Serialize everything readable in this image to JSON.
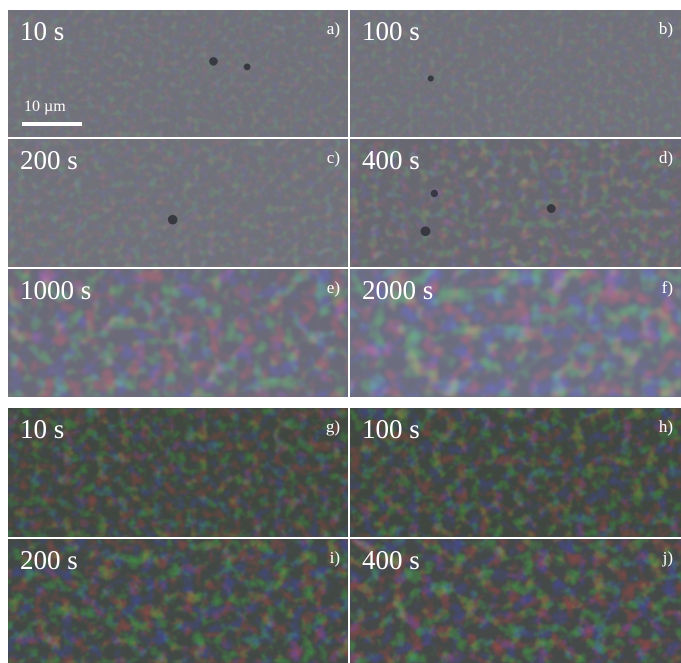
{
  "colors": {
    "top_base": "#6f7179",
    "bottom_base": "#3f4640",
    "background": "#ffffff"
  },
  "scale_bar": {
    "label": "10 µm"
  },
  "panels": [
    {
      "tag": "a)",
      "time": "10 s"
    },
    {
      "tag": "b)",
      "time": "100 s"
    },
    {
      "tag": "c)",
      "time": "200 s"
    },
    {
      "tag": "d)",
      "time": "400 s"
    },
    {
      "tag": "e)",
      "time": "1000 s"
    },
    {
      "tag": "f)",
      "time": "2000 s"
    },
    {
      "tag": "g)",
      "time": "10 s"
    },
    {
      "tag": "h)",
      "time": "100 s"
    },
    {
      "tag": "i)",
      "time": "200 s"
    },
    {
      "tag": "j)",
      "time": "400 s"
    }
  ]
}
